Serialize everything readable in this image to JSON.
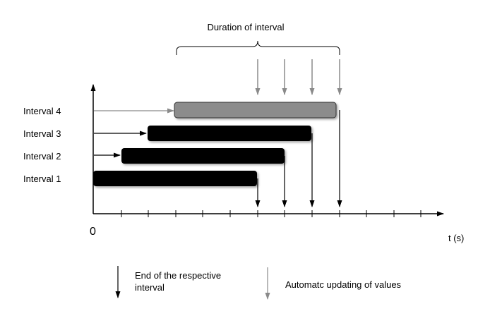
{
  "title": "Duration of interval",
  "axis": {
    "origin_label": "0",
    "x_label": "t (s)"
  },
  "intervals": [
    {
      "label": "Interval 4",
      "style": "gray"
    },
    {
      "label": "Interval 3",
      "style": "black"
    },
    {
      "label": "Interval 2",
      "style": "black"
    },
    {
      "label": "Interval 1",
      "style": "black"
    }
  ],
  "legend": {
    "end_label_line1": "End of the respective",
    "end_label_line2": "interval",
    "update_label": "Automatc updating of values"
  },
  "colors": {
    "bar_black": "#000000",
    "bar_gray": "#8c8c8c",
    "arrow_black": "#000000",
    "arrow_gray": "#8a8a8a"
  }
}
